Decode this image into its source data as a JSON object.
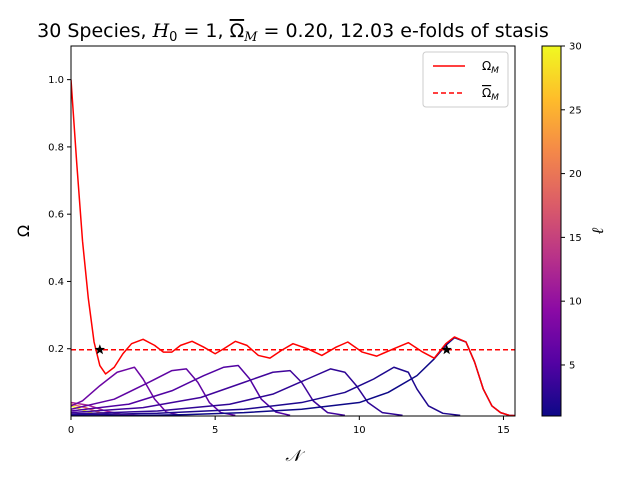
{
  "chart_data": {
    "type": "line",
    "title_parts": [
      "30 Species, ",
      "H",
      "0",
      " = 1, ",
      "Ω",
      "M",
      " = 0.20, 12.03 e-folds of stasis"
    ],
    "xlabel": "𝒩",
    "ylabel": "Ω",
    "xlim": [
      0,
      15.4
    ],
    "ylim": [
      0,
      1.1
    ],
    "x_ticks": [
      0,
      5,
      10,
      15
    ],
    "y_ticks": [
      0.2,
      0.4,
      0.6,
      0.8,
      1.0
    ],
    "x_tick_labels": [
      "0",
      "5",
      "10",
      "15"
    ],
    "y_tick_labels": [
      "0.2",
      "0.4",
      "0.6",
      "0.8",
      "1.0"
    ],
    "colors": {
      "omega_m": "#ff0000",
      "stasis": "#ff0000",
      "star": "#000000"
    },
    "legend": {
      "placement": "top-right",
      "entries": [
        {
          "label": "Ω",
          "sub": "M",
          "style": "solid",
          "bar": false
        },
        {
          "label": "Ω",
          "sub": "M",
          "style": "dashed",
          "bar": true
        }
      ]
    },
    "series": [
      {
        "key": "omega_m",
        "x": [
          0,
          0.2,
          0.4,
          0.6,
          0.8,
          1.0,
          1.2,
          1.5,
          1.8,
          2.1,
          2.5,
          2.9,
          3.2,
          3.5,
          3.8,
          4.2,
          4.6,
          5.0,
          5.3,
          5.7,
          6.1,
          6.5,
          6.9,
          7.3,
          7.7,
          8.2,
          8.7,
          9.2,
          9.6,
          10.1,
          10.6,
          11.2,
          11.7,
          12.2,
          12.6,
          13.0,
          13.3,
          13.7,
          14.0,
          14.3,
          14.6,
          14.9,
          15.2,
          15.4
        ],
        "y": [
          1.0,
          0.75,
          0.52,
          0.35,
          0.22,
          0.15,
          0.125,
          0.145,
          0.185,
          0.215,
          0.228,
          0.21,
          0.19,
          0.19,
          0.21,
          0.222,
          0.205,
          0.185,
          0.2,
          0.222,
          0.21,
          0.18,
          0.172,
          0.195,
          0.215,
          0.2,
          0.18,
          0.205,
          0.22,
          0.19,
          0.178,
          0.2,
          0.218,
          0.19,
          0.172,
          0.215,
          0.235,
          0.22,
          0.16,
          0.08,
          0.03,
          0.01,
          0.002,
          0.001
        ]
      },
      {
        "key": "stasis",
        "x": [
          0,
          15.4
        ],
        "y": [
          0.197,
          0.197
        ]
      },
      {
        "key": "ell_1",
        "ell": 1,
        "x": [
          0,
          2,
          4,
          6,
          8,
          10,
          11,
          12,
          12.6,
          13.0,
          13.3,
          13.7,
          14.0,
          14.3,
          14.6,
          14.9,
          15.2,
          15.4
        ],
        "y": [
          0.0,
          0.001,
          0.004,
          0.01,
          0.02,
          0.04,
          0.07,
          0.12,
          0.17,
          0.21,
          0.233,
          0.22,
          0.16,
          0.08,
          0.03,
          0.01,
          0.002,
          0.001
        ]
      },
      {
        "key": "ell_2",
        "ell": 2,
        "x": [
          0,
          3,
          6,
          8,
          9.5,
          10.5,
          11.2,
          11.7,
          12.0,
          12.4,
          12.9,
          13.5
        ],
        "y": [
          0.003,
          0.008,
          0.02,
          0.04,
          0.07,
          0.11,
          0.145,
          0.13,
          0.08,
          0.03,
          0.008,
          0.002
        ]
      },
      {
        "key": "ell_3",
        "ell": 3,
        "x": [
          0,
          3,
          5.5,
          7,
          8.2,
          9,
          9.5,
          9.9,
          10.3,
          10.8,
          11.5
        ],
        "y": [
          0.006,
          0.015,
          0.035,
          0.065,
          0.11,
          0.14,
          0.13,
          0.09,
          0.04,
          0.01,
          0.002
        ]
      },
      {
        "key": "ell_4",
        "ell": 4,
        "x": [
          0,
          2.5,
          4.5,
          6,
          7,
          7.6,
          8.0,
          8.4,
          8.9,
          9.5
        ],
        "y": [
          0.01,
          0.025,
          0.055,
          0.1,
          0.13,
          0.135,
          0.1,
          0.045,
          0.01,
          0.002
        ]
      },
      {
        "key": "ell_5",
        "ell": 5,
        "x": [
          0,
          2,
          3.5,
          4.6,
          5.3,
          5.8,
          6.2,
          6.6,
          7.1,
          7.6
        ],
        "y": [
          0.015,
          0.035,
          0.075,
          0.12,
          0.145,
          0.15,
          0.11,
          0.05,
          0.012,
          0.002
        ]
      },
      {
        "key": "ell_6",
        "ell": 6,
        "x": [
          0,
          1.5,
          2.7,
          3.5,
          4.0,
          4.4,
          4.8,
          5.2,
          5.7
        ],
        "y": [
          0.02,
          0.05,
          0.1,
          0.135,
          0.14,
          0.1,
          0.04,
          0.01,
          0.002
        ]
      },
      {
        "key": "ell_7",
        "ell": 7,
        "x": [
          0,
          0.4,
          1.0,
          1.6,
          2.2,
          2.5,
          2.9,
          3.3,
          3.8
        ],
        "y": [
          0.03,
          0.045,
          0.09,
          0.13,
          0.145,
          0.11,
          0.05,
          0.012,
          0.002
        ]
      },
      {
        "key": "ell_12",
        "ell": 12,
        "x": [
          0,
          0.6,
          1.2,
          1.8,
          2.4
        ],
        "y": [
          0.04,
          0.032,
          0.015,
          0.004,
          0.001
        ]
      },
      {
        "key": "ell_20",
        "ell": 20,
        "x": [
          0,
          0.5,
          1.0,
          1.5,
          2.0
        ],
        "y": [
          0.035,
          0.025,
          0.01,
          0.003,
          0.001
        ]
      },
      {
        "key": "ell_30",
        "ell": 30,
        "x": [
          0,
          0.4,
          0.8,
          1.2,
          1.6
        ],
        "y": [
          0.03,
          0.018,
          0.007,
          0.002,
          0.0005
        ]
      }
    ],
    "markers": [
      {
        "x": 1.0,
        "y": 0.197
      },
      {
        "x": 13.03,
        "y": 0.197
      }
    ],
    "colorbar": {
      "label": "ℓ",
      "range": [
        1,
        30
      ],
      "ticks": [
        5,
        10,
        15,
        20,
        25,
        30
      ],
      "tick_labels": [
        "5",
        "10",
        "15",
        "20",
        "25",
        "30"
      ],
      "colormap": [
        "#0d0887",
        "#5302a3",
        "#8b0aa5",
        "#b83289",
        "#db5c68",
        "#f48849",
        "#febd2a",
        "#f0f921"
      ]
    }
  }
}
